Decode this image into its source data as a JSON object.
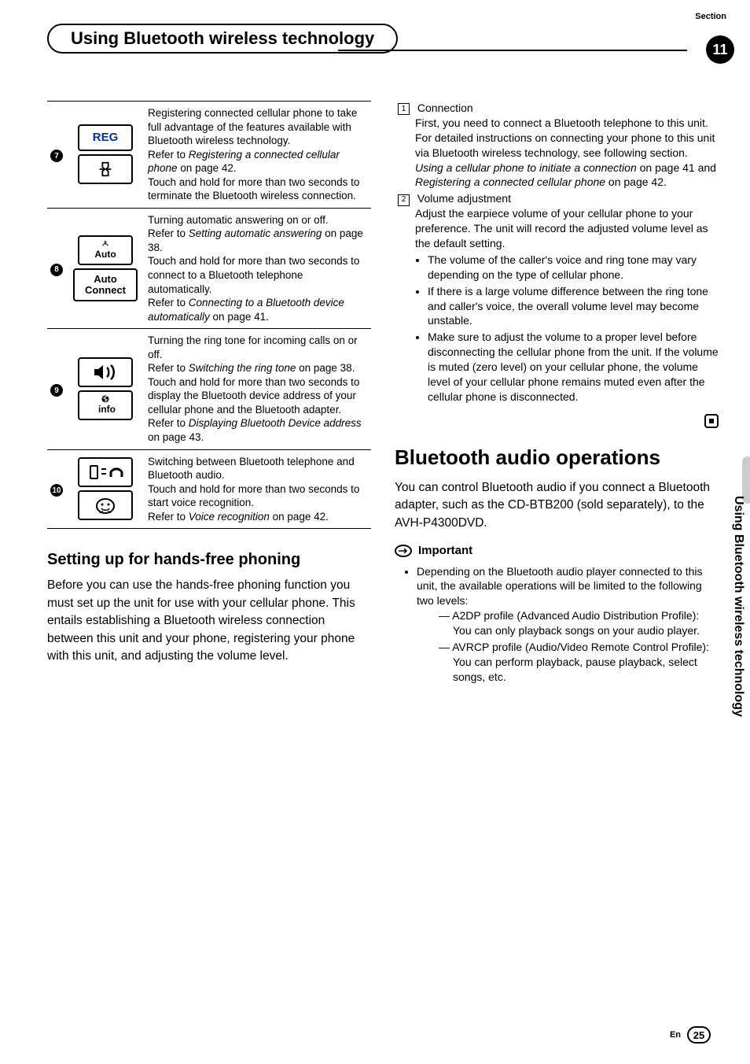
{
  "header": {
    "section_label": "Section",
    "title": "Using Bluetooth wireless technology",
    "page_number_top": "11"
  },
  "table_rows": [
    {
      "num": "7",
      "icon_top_label": "REG",
      "desc_html": "Registering connected cellular phone to take full advantage of the features available with Bluetooth wireless technology.<br>Refer to <span class='ital'>Registering a connected cellular phone</span> on page 42.<br>Touch and hold for more than two seconds to terminate the Bluetooth wireless connection."
    },
    {
      "num": "8",
      "icon_top_label": "Auto",
      "icon_bottom_label": "Auto Connect",
      "desc_html": "Turning automatic answering on or off.<br>Refer to <span class='ital'>Setting automatic answering</span> on page 38.<br>Touch and hold for more than two seconds to connect to a Bluetooth telephone automatically.<br>Refer to <span class='ital'>Connecting to a Bluetooth device automatically</span> on page 41."
    },
    {
      "num": "9",
      "icon_bottom_label": "info",
      "desc_html": "Turning the ring tone for incoming calls on or off.<br>Refer to <span class='ital'>Switching the ring tone</span> on page 38.<br>Touch and hold for more than two seconds to display the Bluetooth device address of your cellular phone and the Bluetooth adapter.<br>Refer to <span class='ital'>Displaying Bluetooth Device address</span> on page 43."
    },
    {
      "num": "10",
      "desc_html": "Switching between Bluetooth telephone and Bluetooth audio.<br>Touch and hold for more than two seconds to start voice recognition.<br>Refer to <span class='ital'>Voice recognition</span> on page 42."
    }
  ],
  "left_section": {
    "heading": "Setting up for hands-free phoning",
    "body": "Before you can use the hands-free phoning function you must set up the unit for use with your cellular phone. This entails establishing a Bluetooth wireless connection between this unit and your phone, registering your phone with this unit, and adjusting the volume level."
  },
  "right_steps": {
    "step1_label": "1",
    "step1_title": "Connection",
    "step1_body_html": "First, you need to connect a Bluetooth telephone to this unit.<br>For detailed instructions on connecting your phone to this unit via Bluetooth wireless technology, see following section. <span class='ital'>Using a cellular phone to initiate a connection</span> on page 41 and <span class='ital'>Registering a connected cellular phone</span> on page 42.",
    "step2_label": "2",
    "step2_title": "Volume adjustment",
    "step2_body": "Adjust the earpiece volume of your cellular phone to your preference. The unit will record the adjusted volume level as the default setting.",
    "bullets": [
      "The volume of the caller's voice and ring tone may vary depending on the type of cellular phone.",
      "If there is a large volume difference between the ring tone and caller's voice, the overall volume level may become unstable.",
      "Make sure to adjust the volume to a proper level before disconnecting the cellular phone from the unit. If the volume is muted (zero level) on your cellular phone, the volume level of your cellular phone remains muted even after the cellular phone is disconnected."
    ]
  },
  "right_section2": {
    "heading": "Bluetooth audio operations",
    "body": "You can control Bluetooth audio if you connect a Bluetooth adapter, such as the CD-BTB200 (sold separately), to the AVH-P4300DVD.",
    "important_label": "Important",
    "important_body": "Depending on the Bluetooth audio player connected to this unit, the available operations will be limited to the following two levels:",
    "dashes": [
      "A2DP profile (Advanced Audio Distribution Profile): You can only playback songs on your audio player.",
      "AVRCP profile (Audio/Video Remote Control Profile): You can perform playback, pause playback, select songs, etc."
    ]
  },
  "side_tab": "Using Bluetooth wireless technology",
  "footer": {
    "lang": "En",
    "page": "25"
  }
}
